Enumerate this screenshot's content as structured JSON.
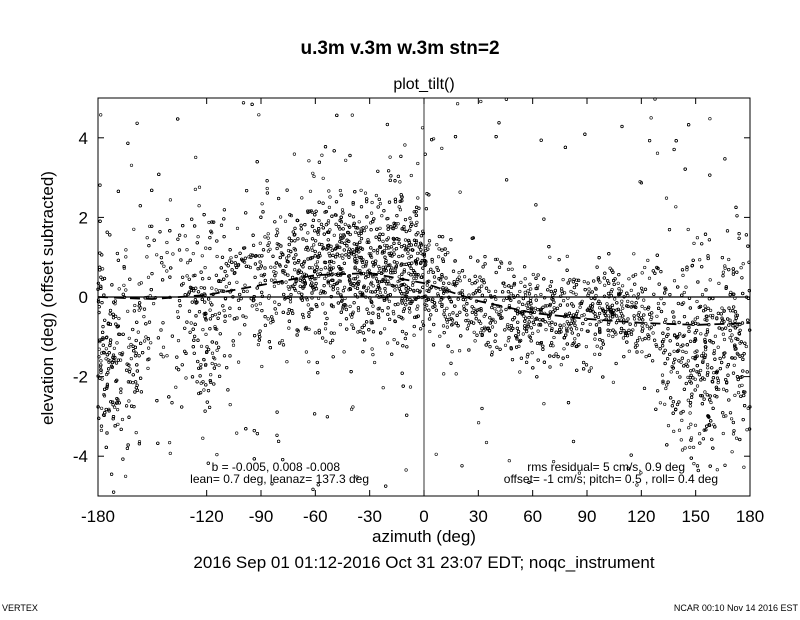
{
  "chart_data": {
    "type": "scatter",
    "title": "u.3m v.3m w.3m stn=2",
    "subtitle": "plot_tilt()",
    "xlabel": "azimuth (deg)",
    "ylabel": "elevation (deg)   (offset subtracted)",
    "footer": "2016 Sep 01 01:12-2016 Oct 31 23:07 EDT; noqc_instrument",
    "xlim": [
      -180,
      180
    ],
    "ylim": [
      -5,
      5
    ],
    "xticks": [
      -180,
      -120,
      -90,
      -60,
      -30,
      0,
      30,
      60,
      90,
      120,
      150,
      180
    ],
    "xtick_labels": [
      "-180",
      "-120",
      "-90",
      "-60",
      "-30",
      "0",
      "30",
      "60",
      "90",
      "120",
      "150",
      "180"
    ],
    "yticks": [
      -4,
      -2,
      0,
      2,
      4
    ],
    "ytick_labels": [
      "-4",
      "-2",
      "0",
      "2",
      "4"
    ],
    "grid": false,
    "reference_lines": [
      {
        "axis": "y",
        "value": 0
      },
      {
        "axis": "x",
        "value": 0
      }
    ],
    "fit_curve": {
      "style": "dashed",
      "x": [
        -180,
        -150,
        -120,
        -90,
        -60,
        -30,
        0,
        30,
        60,
        90,
        120,
        150,
        180
      ],
      "y": [
        0.0,
        -0.05,
        0.05,
        0.3,
        0.55,
        0.6,
        0.35,
        -0.1,
        -0.4,
        -0.55,
        -0.65,
        -0.7,
        -0.65
      ]
    },
    "scatter_density": {
      "description_free": true,
      "x": [
        -180,
        -170,
        -160,
        -150,
        -140,
        -130,
        -120,
        -110,
        -100,
        -90,
        -80,
        -70,
        -60,
        -50,
        -40,
        -30,
        -20,
        -10,
        0,
        10,
        20,
        30,
        40,
        50,
        60,
        70,
        80,
        90,
        100,
        110,
        120,
        130,
        140,
        150,
        160,
        170,
        180
      ],
      "center": [
        -0.8,
        -1.5,
        -1.5,
        0.0,
        0.0,
        0.0,
        -0.5,
        0.0,
        0.2,
        0.4,
        0.5,
        0.6,
        0.8,
        0.8,
        0.8,
        0.7,
        0.8,
        0.9,
        0.4,
        0.1,
        -0.1,
        -0.2,
        -0.3,
        -0.4,
        -0.5,
        -0.4,
        -0.4,
        -0.4,
        -0.4,
        -0.5,
        -0.6,
        -1.0,
        -1.5,
        -1.6,
        -1.5,
        -1.3,
        -1.0
      ],
      "spread": [
        1.3,
        1.5,
        1.2,
        1.5,
        1.4,
        1.3,
        1.3,
        1.2,
        1.0,
        0.9,
        0.9,
        0.9,
        0.9,
        0.9,
        0.9,
        0.9,
        0.9,
        0.9,
        0.8,
        0.7,
        0.6,
        0.6,
        0.6,
        0.6,
        0.6,
        0.6,
        0.6,
        0.6,
        0.6,
        0.6,
        0.7,
        1.0,
        1.3,
        1.3,
        1.3,
        1.3,
        1.4
      ],
      "density": [
        1.0,
        0.9,
        0.5,
        0.25,
        0.3,
        0.4,
        1.0,
        0.4,
        0.4,
        0.5,
        0.6,
        0.8,
        1.0,
        1.0,
        1.0,
        1.0,
        1.0,
        1.0,
        0.9,
        0.7,
        0.6,
        0.55,
        0.6,
        0.6,
        0.6,
        0.6,
        0.6,
        0.6,
        0.6,
        0.6,
        0.5,
        0.5,
        0.7,
        0.8,
        0.8,
        0.8,
        0.9
      ]
    },
    "annotations": {
      "b": "b = -0.005, 0.008 -0.008",
      "lean": "lean= 0.7 deg, leanaz= 137.3 deg",
      "rms": "rms residual= 5 cm/s, 0.9 deg",
      "offset": "offset= -1 cm/s; pitch= 0.5 , roll= 0.4 deg"
    }
  },
  "corner": {
    "left": "VERTEX",
    "right": "NCAR 00:10 Nov 14 2016 EST"
  }
}
